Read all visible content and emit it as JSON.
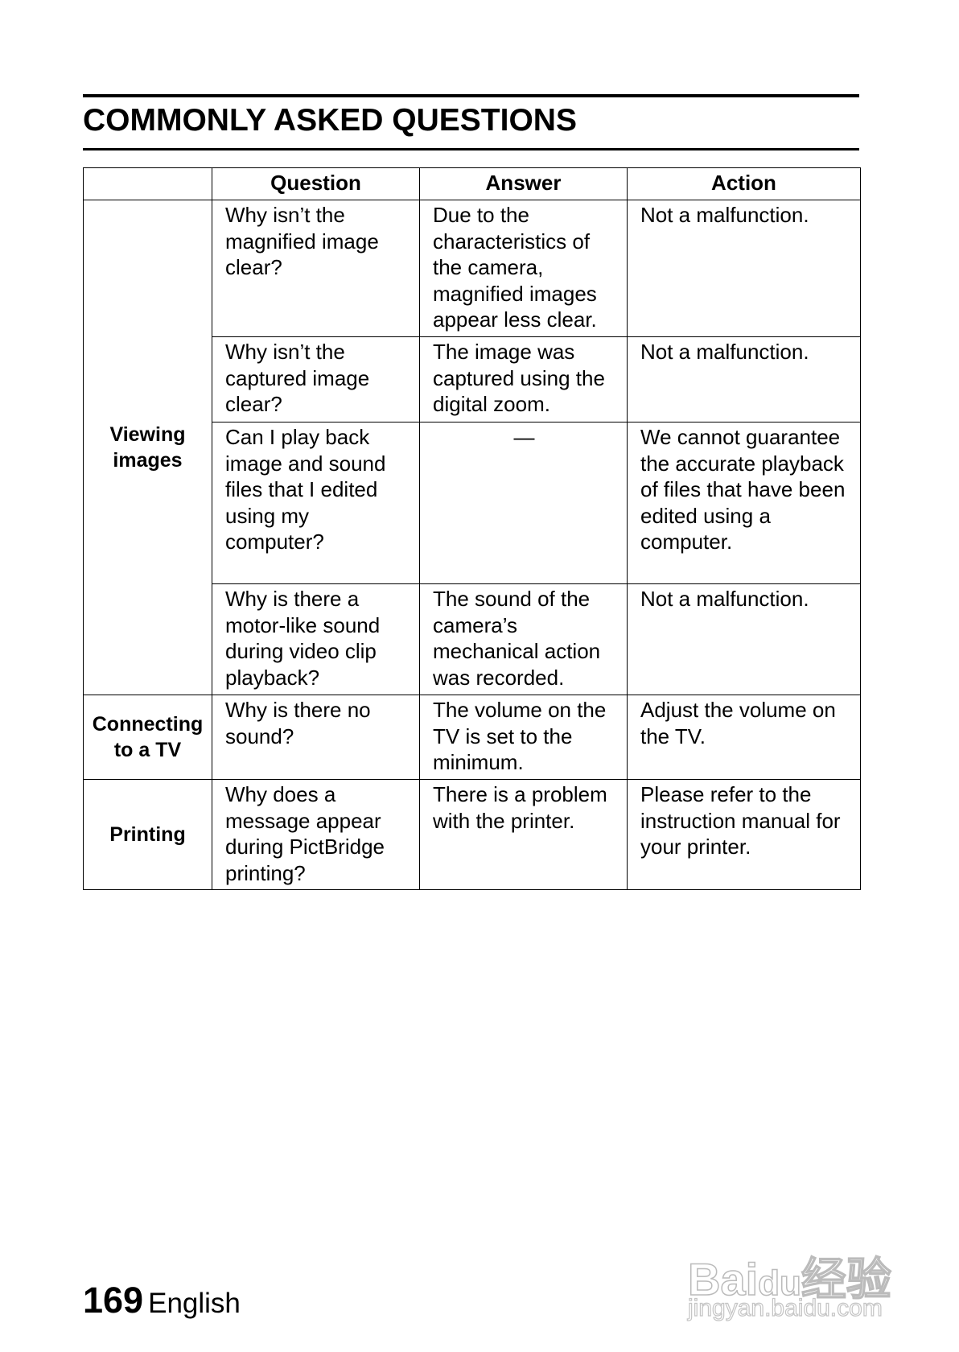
{
  "header": {
    "title": "COMMONLY ASKED QUESTIONS"
  },
  "table": {
    "columns": [
      "",
      "Question",
      "Answer",
      "Action"
    ],
    "categories": [
      "Viewing images",
      "Connecting to a TV",
      "Printing"
    ],
    "rows": [
      {
        "question": "Why isn’t the magnified image clear?",
        "answer": "Due to the characteristics of the camera, magnified images appear less clear.",
        "action": "Not a malfunction."
      },
      {
        "question": "Why isn’t the captured image clear?",
        "answer": "The image was captured using the digital zoom.",
        "action": "Not a malfunction."
      },
      {
        "question": "Can I play back image and sound files that I edited using my computer?",
        "answer": "—",
        "action": "We cannot guarantee the accurate playback of files that have been edited using a computer."
      },
      {
        "question": "Why is there a motor-like sound during video clip playback?",
        "answer": "The sound of the camera’s mechanical action was recorded.",
        "action": "Not a malfunction."
      },
      {
        "question": "Why is there no sound?",
        "answer": "The volume on the TV is set to the minimum.",
        "action": "Adjust the volume on the TV."
      },
      {
        "question": "Why does a message appear during PictBridge printing?",
        "answer": "There is a problem with the printer.",
        "action": "Please refer to the instruction manual for your printer."
      }
    ]
  },
  "footer": {
    "page_number": "169",
    "language": "English"
  },
  "watermark": {
    "logo": "Bai du 经验",
    "url": "jingyan.baidu.com"
  }
}
